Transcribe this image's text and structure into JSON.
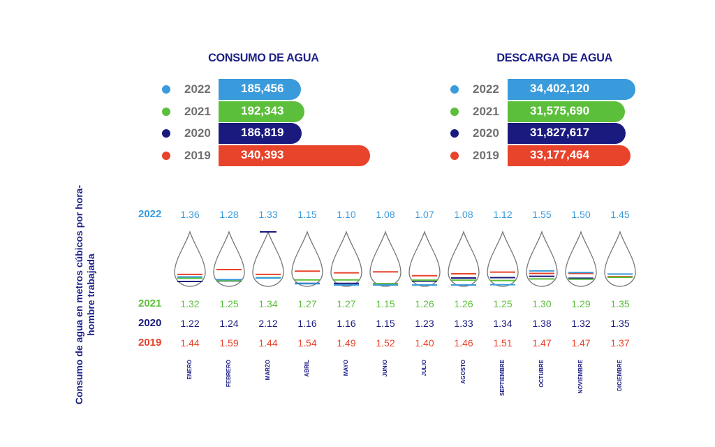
{
  "colors": {
    "2022": "#3a9bdc",
    "2021": "#5cbf3b",
    "2020": "#1a1a7e",
    "2019": "#e8432b"
  },
  "chart_data": [
    {
      "type": "bar",
      "title": "CONSUMO DE AGUA",
      "categories": [
        "2022",
        "2021",
        "2020",
        "2019"
      ],
      "values": [
        185456,
        192343,
        186819,
        340393
      ],
      "labels": [
        "185,456",
        "192,343",
        "186,819",
        "340,393"
      ]
    },
    {
      "type": "bar",
      "title": "DESCARGA DE AGUA",
      "categories": [
        "2022",
        "2021",
        "2020",
        "2019"
      ],
      "values": [
        34402120,
        31575690,
        31827617,
        33177464
      ],
      "labels": [
        "34,402,120",
        "31,575,690",
        "31,827,617",
        "33,177,464"
      ]
    },
    {
      "type": "table",
      "ylabel": "Consumo de agua en metros cúbicos por hora-hombre trabajada",
      "categories": [
        "ENERO",
        "FEBRERO",
        "MARZO",
        "ABRIL",
        "MAYO",
        "JUNIO",
        "JULIO",
        "AGOSTO",
        "SEPTIEMBRE",
        "OCTUBRE",
        "NOVIEMBRE",
        "DICIEMBRE"
      ],
      "series": [
        {
          "name": "2022",
          "values": [
            "1.36",
            "1.28",
            "1.33",
            "1.15",
            "1.10",
            "1.08",
            "1.07",
            "1.08",
            "1.12",
            "1.55",
            "1.50",
            "1.45"
          ]
        },
        {
          "name": "2021",
          "values": [
            "1.32",
            "1.25",
            "1.34",
            "1.27",
            "1.27",
            "1.15",
            "1.26",
            "1.26",
            "1.25",
            "1.30",
            "1.29",
            "1.35"
          ]
        },
        {
          "name": "2020",
          "values": [
            "1.22",
            "1.24",
            "2.12",
            "1.16",
            "1.16",
            "1.15",
            "1.23",
            "1.33",
            "1.34",
            "1.38",
            "1.32",
            "1.35"
          ]
        },
        {
          "name": "2019",
          "values": [
            "1.44",
            "1.59",
            "1.44",
            "1.54",
            "1.49",
            "1.52",
            "1.40",
            "1.46",
            "1.51",
            "1.47",
            "1.47",
            "1.37"
          ]
        }
      ]
    }
  ]
}
